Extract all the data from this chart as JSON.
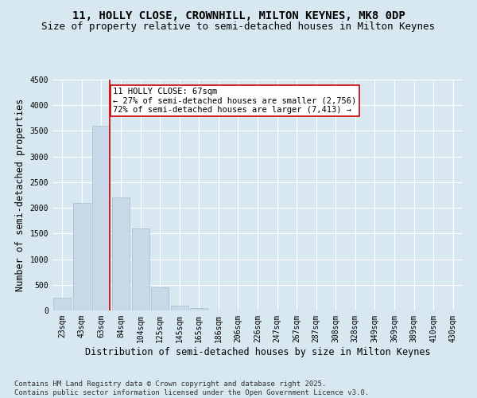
{
  "title_line1": "11, HOLLY CLOSE, CROWNHILL, MILTON KEYNES, MK8 0DP",
  "title_line2": "Size of property relative to semi-detached houses in Milton Keynes",
  "xlabel": "Distribution of semi-detached houses by size in Milton Keynes",
  "ylabel": "Number of semi-detached properties",
  "categories": [
    "23sqm",
    "43sqm",
    "63sqm",
    "84sqm",
    "104sqm",
    "125sqm",
    "145sqm",
    "165sqm",
    "186sqm",
    "206sqm",
    "226sqm",
    "247sqm",
    "267sqm",
    "287sqm",
    "308sqm",
    "328sqm",
    "349sqm",
    "369sqm",
    "389sqm",
    "410sqm",
    "430sqm"
  ],
  "values": [
    250,
    2100,
    3600,
    2200,
    1600,
    450,
    100,
    50,
    5,
    2,
    1,
    0,
    0,
    0,
    0,
    0,
    0,
    0,
    0,
    0,
    0
  ],
  "bar_color": "#c8d8e8",
  "bar_edge_color": "#a8bfcf",
  "vline_x": 2.45,
  "vline_color": "#cc0000",
  "annotation_title": "11 HOLLY CLOSE: 67sqm",
  "annotation_line2": "← 27% of semi-detached houses are smaller (2,756)",
  "annotation_line3": "72% of semi-detached houses are larger (7,413) →",
  "annotation_box_color": "#ffffff",
  "annotation_box_edge": "#cc0000",
  "ylim": [
    0,
    4500
  ],
  "yticks": [
    0,
    500,
    1000,
    1500,
    2000,
    2500,
    3000,
    3500,
    4000,
    4500
  ],
  "footnote": "Contains HM Land Registry data © Crown copyright and database right 2025.\nContains public sector information licensed under the Open Government Licence v3.0.",
  "bg_color": "#d8e8f0",
  "plot_bg_color": "#d8e8f0",
  "grid_color": "#ffffff",
  "title_fontsize": 10,
  "subtitle_fontsize": 9,
  "axis_label_fontsize": 8.5,
  "tick_fontsize": 7,
  "footnote_fontsize": 6.5,
  "annot_fontsize": 7.5
}
